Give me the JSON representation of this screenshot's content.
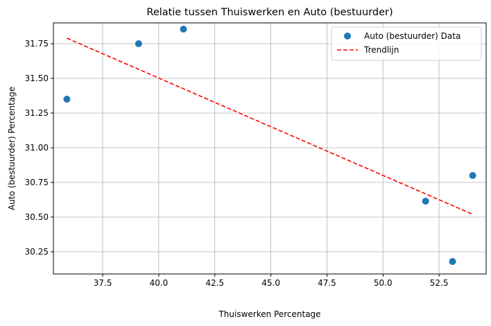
{
  "chart_data": {
    "type": "scatter",
    "title": "Relatie tussen Thuiswerken en Auto (bestuurder)",
    "xlabel": "Thuiswerken Percentage",
    "ylabel": "Auto (bestuurder) Percentage",
    "xlim": [
      35.3,
      54.6
    ],
    "ylim": [
      30.09,
      31.9
    ],
    "xticks": [
      37.5,
      40.0,
      42.5,
      45.0,
      47.5,
      50.0,
      52.5
    ],
    "xtick_labels": [
      "37.5",
      "40.0",
      "42.5",
      "45.0",
      "47.5",
      "50.0",
      "52.5"
    ],
    "yticks": [
      30.25,
      30.5,
      30.75,
      31.0,
      31.25,
      31.5,
      31.75
    ],
    "ytick_labels": [
      "30.25",
      "30.50",
      "30.75",
      "31.00",
      "31.25",
      "31.50",
      "31.75"
    ],
    "grid": true,
    "legend_position": "top-right",
    "series": [
      {
        "name": "Auto (bestuurder) Data",
        "kind": "scatter",
        "color": "#1f77b4",
        "points": [
          {
            "x": 35.9,
            "y": 31.35
          },
          {
            "x": 39.1,
            "y": 31.75
          },
          {
            "x": 41.1,
            "y": 31.855
          },
          {
            "x": 51.9,
            "y": 30.615
          },
          {
            "x": 53.1,
            "y": 30.18
          },
          {
            "x": 54.0,
            "y": 30.8
          }
        ]
      },
      {
        "name": "Trendlijn",
        "kind": "line",
        "style": "dashed",
        "color": "#ff0000",
        "points": [
          {
            "x": 35.9,
            "y": 31.79
          },
          {
            "x": 54.0,
            "y": 30.52
          }
        ]
      }
    ]
  }
}
